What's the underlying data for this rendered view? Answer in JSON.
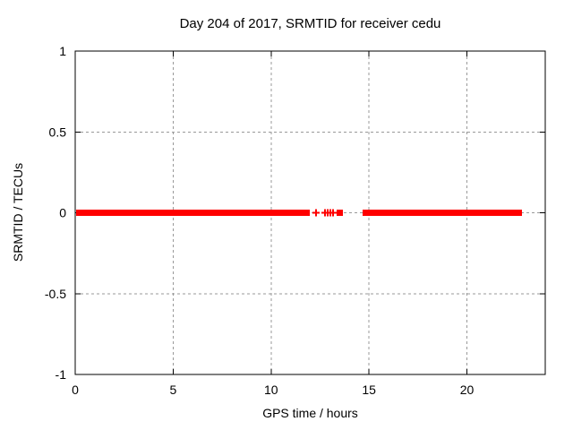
{
  "page": {
    "background": "#ffffff"
  },
  "chart_data": {
    "type": "scatter",
    "title": "Day 204 of 2017, SRMTID for receiver cedu",
    "xlabel": "GPS time / hours",
    "ylabel": "SRMTID / TECUs",
    "xlim": [
      0,
      24
    ],
    "ylim": [
      -1,
      1
    ],
    "xticks": [
      0,
      5,
      10,
      15,
      20
    ],
    "xtick_labels": [
      "0",
      "5",
      "10",
      "15",
      "20"
    ],
    "yticks": [
      -1,
      -0.5,
      0,
      0.5,
      1
    ],
    "ytick_labels": [
      "-1",
      "-0.5",
      "0",
      "0.5",
      "1"
    ],
    "grid": true,
    "grid_color": "#999999",
    "border_color": "#000000",
    "background_color": "#ffffff",
    "legend": "none",
    "series": [
      {
        "name": "SRMTID",
        "color": "#ff0000",
        "marker": "plus",
        "y_value": 0,
        "dense_segments_x": [
          [
            0.05,
            11.97
          ],
          [
            13.35,
            13.66
          ],
          [
            14.68,
            22.81
          ]
        ],
        "sparse_points_x": [
          12.3,
          12.75,
          12.89,
          13.03,
          13.17
        ]
      }
    ]
  }
}
